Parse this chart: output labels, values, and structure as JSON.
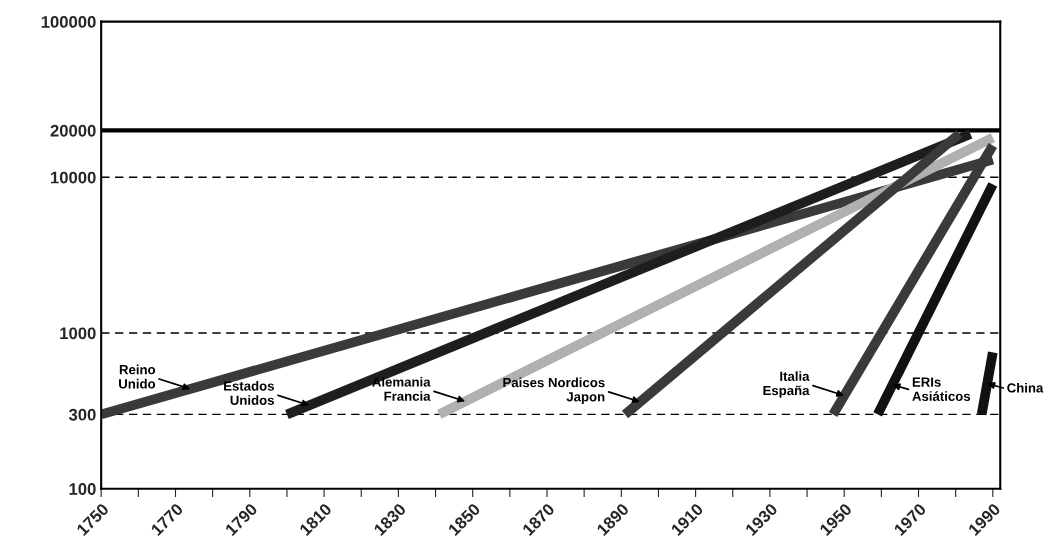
{
  "chart_data": {
    "type": "line",
    "log": "y",
    "grid": false,
    "legend": false,
    "marker": "none",
    "line_style": "solid",
    "xlim": [
      1750,
      1992
    ],
    "ylim": [
      100,
      100000
    ],
    "xticks": [
      1750,
      {
        "value": 1760,
        "label": null
      },
      1770,
      {
        "value": 1780,
        "label": null
      },
      1790,
      {
        "value": 1800,
        "label": null
      },
      1810,
      {
        "value": 1820,
        "label": null
      },
      1830,
      {
        "value": 1840,
        "label": null
      },
      1850,
      {
        "value": 1860,
        "label": null
      },
      1870,
      {
        "value": 1880,
        "label": null
      },
      1890,
      {
        "value": 1900,
        "label": null
      },
      1910,
      {
        "value": 1920,
        "label": null
      },
      1930,
      {
        "value": 1940,
        "label": null
      },
      1950,
      {
        "value": 1960,
        "label": null
      },
      1970,
      {
        "value": 1980,
        "label": null
      },
      1990
    ],
    "yticks": [
      100,
      300,
      1000,
      10000,
      20000,
      100000
    ],
    "series": [
      {
        "color": "#3a3a3a",
        "x": [
          1750,
          1990
        ],
        "values": [
          300,
          13000
        ]
      },
      {
        "color": "#1e1e1e",
        "x": [
          1800,
          1984
        ],
        "values": [
          300,
          19000
        ]
      },
      {
        "color": "#b0b0b0",
        "x": [
          1841,
          1990
        ],
        "values": [
          300,
          18000
        ]
      },
      {
        "color": "#3a3a3a",
        "x": [
          1891,
          1981
        ],
        "values": [
          300,
          19000
        ]
      },
      {
        "color": "#3a3a3a",
        "x": [
          1947,
          1990
        ],
        "values": [
          300,
          16000
        ]
      },
      {
        "color": "#111111",
        "x": [
          1959,
          1990
        ],
        "values": [
          300,
          9000
        ]
      },
      {
        "color": "#111111",
        "x": [
          1987,
          1990
        ],
        "values": [
          300,
          750
        ]
      }
    ],
    "ref_lines": [
      {
        "axis": "y",
        "value": 300,
        "line_style": "dashed"
      },
      {
        "axis": "y",
        "value": 1000,
        "line_style": "dashed"
      },
      {
        "axis": "y",
        "value": 10000,
        "line_style": "dashed"
      },
      {
        "axis": "y",
        "value": 20000,
        "line_style": "solid"
      }
    ],
    "annotations": [
      {
        "text": "Reino\nUnido",
        "x": 1774,
        "y": 437
      },
      {
        "text": "Estados\nUnidos",
        "x": 1806,
        "y": 343
      },
      {
        "text": "Alemania\nFrancia",
        "x": 1848,
        "y": 364
      },
      {
        "text": "Paises Nordicos\nJapon",
        "x": 1895,
        "y": 361
      },
      {
        "text": "Italia\nEspaña",
        "x": 1950,
        "y": 396
      },
      {
        "text": "ERIs\nAsiáticos",
        "x": 1963,
        "y": 465
      },
      {
        "text": "China",
        "x": 1988.5,
        "y": 474
      }
    ]
  }
}
